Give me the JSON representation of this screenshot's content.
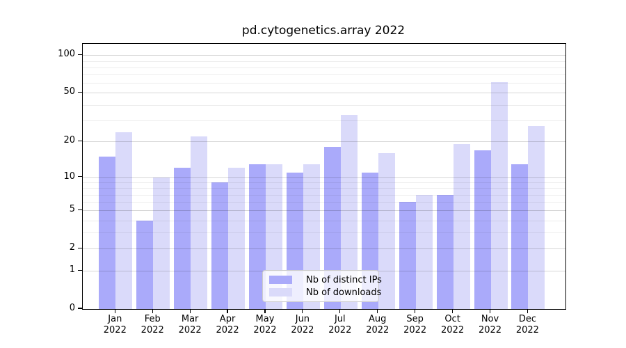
{
  "chart_data": {
    "type": "bar",
    "title": "pd.cytogenetics.array 2022",
    "categories": [
      "Jan",
      "Feb",
      "Mar",
      "Apr",
      "May",
      "Jun",
      "Jul",
      "Aug",
      "Sep",
      "Oct",
      "Nov",
      "Dec"
    ],
    "x_tick_line2": "2022",
    "series": [
      {
        "name": "Nb of distinct IPs",
        "color": "#aaaafa",
        "values": [
          15,
          4,
          12,
          9,
          13,
          11,
          18,
          11,
          6,
          7,
          17,
          13
        ]
      },
      {
        "name": "Nb of downloads",
        "color": "#dadafa",
        "values": [
          24,
          10,
          22,
          12,
          13,
          13,
          33,
          16,
          7,
          19,
          61,
          27
        ]
      }
    ],
    "y_axis": {
      "scale": "log1p",
      "ylim": [
        0,
        123
      ],
      "ticks": [
        100,
        50,
        20,
        10,
        5,
        2,
        1,
        0
      ],
      "minor_ticks": [
        3,
        4,
        6,
        7,
        8,
        9,
        30,
        40,
        60,
        70,
        80,
        90
      ]
    },
    "legend": {
      "position": "lower center"
    },
    "grid": "on",
    "xlabel": "",
    "ylabel": ""
  }
}
